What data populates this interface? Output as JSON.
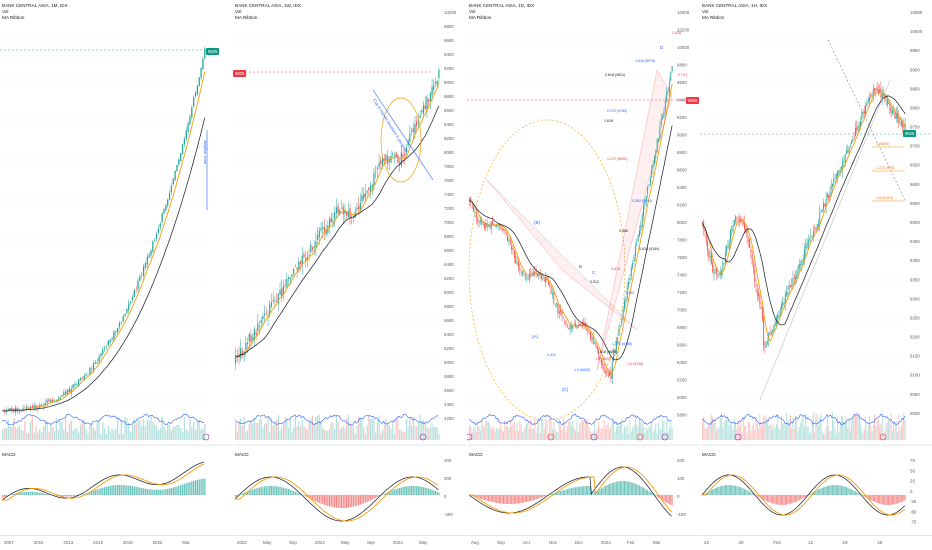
{
  "panels": [
    {
      "id": "p1",
      "title": "BANK CENTRAL ASIA, 1M, IDX",
      "vol": "Vol",
      "ribbon": "MA Ribbon",
      "price_tag": "9825",
      "y_ticks": [],
      "macd_label": "MACD",
      "macd_ticks": [],
      "x_labels": [
        "2007",
        "2010",
        "2013",
        "2016",
        "2019",
        "2022",
        "Mar"
      ],
      "annotation": "Jellyfish chart"
    },
    {
      "id": "p2",
      "title": "BANK CENTRAL ASIA, 1W, IDX",
      "vol": "Vol",
      "ribbon": "MA Ribbon",
      "price_tag": "9825",
      "y_ticks": [
        "10200",
        "9800",
        "9600",
        "9400",
        "9200",
        "9000",
        "8800",
        "8600",
        "8400",
        "8200",
        "8000",
        "7800",
        "7600",
        "7400",
        "7200",
        "7000",
        "6800",
        "6600",
        "6400",
        "6200",
        "6000",
        "5800",
        "5600",
        "5400",
        "5200",
        "5000",
        "4800",
        "4600",
        "4400",
        "4200"
      ],
      "macd_label": "MACD",
      "macd_ticks": [
        "400",
        "200",
        "0",
        "-200"
      ],
      "x_labels": [
        "2022",
        "May",
        "Sep",
        "2023",
        "May",
        "Sep",
        "2024",
        "May"
      ],
      "annotation": "Cup & Handle breakout in progress"
    },
    {
      "id": "p3",
      "title": "BANK CENTRAL ASIA, 1D, IDX",
      "vol": "Vol",
      "ribbon": "MA Ribbon",
      "price_tag": "9825",
      "y_ticks": [
        "10400",
        "10200",
        "10000",
        "9800",
        "9600",
        "9400",
        "9200",
        "9000",
        "8800",
        "8600",
        "8400",
        "8200",
        "8000",
        "7800",
        "7600",
        "7400",
        "7200",
        "7000",
        "6800",
        "6600",
        "6400",
        "6200",
        "6000",
        "5800"
      ],
      "macd_label": "MACD",
      "macd_ticks": [
        "200",
        "100",
        "0",
        "-100"
      ],
      "x_labels": [
        "Aug",
        "Sep",
        "Oct",
        "Nov",
        "Dec",
        "2024",
        "Feb",
        "Mar"
      ],
      "fib_labels": [
        "1.618",
        "1.618 (9979)",
        "2.618 (9821)",
        "0.74 (",
        "2.272 (9750)",
        "1.618",
        "1.272 (9500)",
        "0.382 (9254)",
        "0.618 (9154)",
        "1.0 (9106)",
        "0.382",
        "0.886",
        "0.618",
        "1.272 (6788)",
        "1.618 (6650)",
        "1.0 (6620)",
        "1.0 (6625)",
        "0.512",
        "0.786",
        "0.412"
      ],
      "wave_labels": [
        "(A)",
        "(B)",
        "(C)",
        "C",
        "B",
        "D"
      ]
    },
    {
      "id": "p4",
      "title": "BANK CENTRAL ASIA, 1H, IDX",
      "vol": "Vol",
      "ribbon": "MA Ribbon",
      "price_tag": "9825",
      "y_ticks": [
        "10050",
        "10000",
        "9950",
        "9900",
        "9850",
        "9800",
        "9750",
        "9700",
        "9650",
        "9600",
        "9550",
        "9500",
        "9450",
        "9400",
        "9350",
        "9300",
        "9250",
        "9200",
        "9150",
        "9100",
        "9050",
        "9000"
      ],
      "macd_label": "MACD",
      "macd_ticks": [
        "75",
        "50",
        "25",
        "0",
        "-25",
        "-50",
        "-75"
      ],
      "x_labels": [
        "22",
        "29",
        "Feb",
        "12",
        "19",
        "26"
      ],
      "fib_labels": [
        "1 (9800)",
        "1.272 (975)",
        "1.618 (970"
      ]
    }
  ],
  "colors": {
    "up": "#26a69a",
    "down": "#ef5350",
    "ma_fast": "#f59e0b",
    "ma_slow": "#131722",
    "vol_ma": "#2962ff",
    "price_tag": "#089981",
    "red_tag": "#f23645",
    "grid": "#f0f3fa"
  },
  "icons": [
    "event-marker-icon",
    "sun-icon"
  ]
}
